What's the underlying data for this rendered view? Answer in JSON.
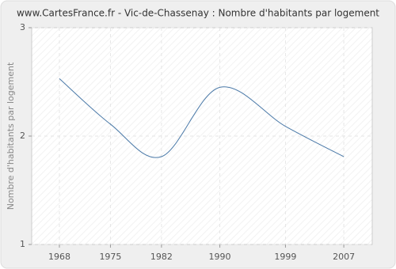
{
  "chart_data": {
    "type": "line",
    "title": "www.CartesFrance.fr - Vic-de-Chassenay : Nombre d'habitants par logement",
    "y_label": "Nombre d'habitants par logement",
    "x": [
      1968,
      1975,
      1982,
      1990,
      1999,
      2007
    ],
    "series": [
      {
        "name": "Nombre d'habitants par logement",
        "color": "#4a79a8",
        "values": [
          2.53,
          2.11,
          1.81,
          2.45,
          2.09,
          1.81
        ]
      }
    ],
    "xlim": [
      1964.2,
      2010.9
    ],
    "xticks": [
      1968,
      1975,
      1982,
      1990,
      1999,
      2007
    ],
    "ylim": [
      1,
      3
    ],
    "yticks": [
      1,
      2,
      3
    ],
    "grid": true
  }
}
